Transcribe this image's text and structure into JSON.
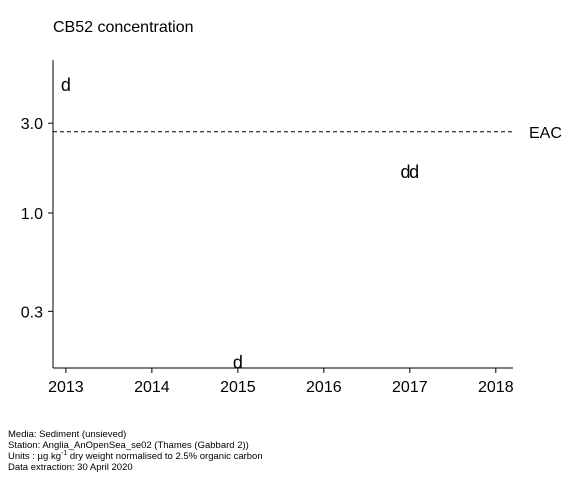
{
  "chart_data": {
    "type": "scatter",
    "title": "CB52 concentration",
    "xlabel": "",
    "ylabel": "",
    "y_scale": "log",
    "x_ticks": [
      "2013",
      "2014",
      "2015",
      "2016",
      "2017",
      "2018"
    ],
    "y_ticks": [
      "0.3",
      "1.0",
      "3.0"
    ],
    "xlim": [
      2012.85,
      2018.2
    ],
    "ylim": [
      0.15,
      6.5
    ],
    "grid": false,
    "marker_label": "d",
    "points": [
      {
        "x": 2013.0,
        "y": 4.8
      },
      {
        "x": 2015.0,
        "y": 0.16
      },
      {
        "x": 2016.95,
        "y": 1.65
      },
      {
        "x": 2017.05,
        "y": 1.65
      }
    ],
    "reference_lines": [
      {
        "label": "EAC",
        "y": 2.7,
        "style": "dashed"
      }
    ]
  },
  "footer": {
    "media": "Media: Sediment (unsieved)",
    "station": "Station: Anglia_AnOpenSea_se02 (Thames (Gabbard 2))",
    "units_prefix": "Units : µg kg",
    "units_exp": "-1",
    "units_suffix": " dry weight normalised to 2.5% organic carbon",
    "extraction": "Data extraction: 30 April 2020"
  }
}
